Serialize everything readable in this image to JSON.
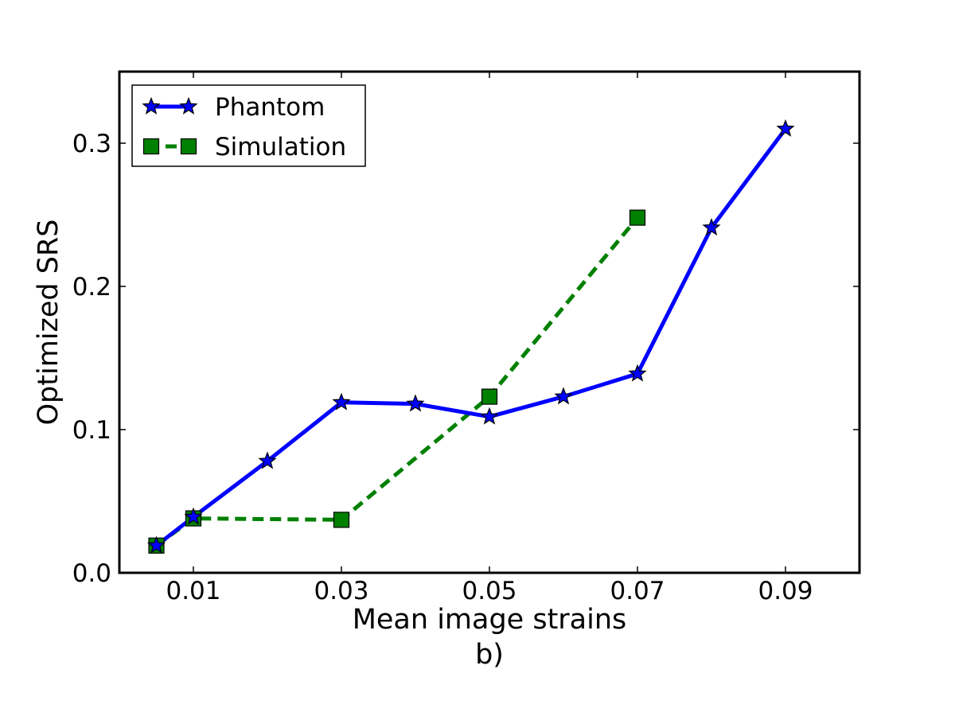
{
  "chart_data": {
    "type": "line",
    "title": "",
    "xlabel": "Mean image strains",
    "ylabel": "Optimized SRS",
    "panel_label": "b)",
    "xlim": [
      0,
      0.1
    ],
    "ylim": [
      0,
      0.35
    ],
    "xticks": [
      0.01,
      0.03,
      0.05,
      0.07,
      0.09
    ],
    "xtick_labels": [
      "0.01",
      "0.03",
      "0.05",
      "0.07",
      "0.09"
    ],
    "yticks": [
      0.0,
      0.1,
      0.2,
      0.3
    ],
    "ytick_labels": [
      "0.0",
      "0.1",
      "0.2",
      "0.3"
    ],
    "grid": false,
    "legend": "top-left",
    "series": [
      {
        "name": "Phantom",
        "color": "#0000ff",
        "linestyle": "solid",
        "marker": "star-icon",
        "x": [
          0.005,
          0.01,
          0.02,
          0.03,
          0.04,
          0.05,
          0.06,
          0.07,
          0.08,
          0.09
        ],
        "y": [
          0.019,
          0.039,
          0.078,
          0.119,
          0.118,
          0.109,
          0.123,
          0.139,
          0.241,
          0.31
        ]
      },
      {
        "name": "Simulation",
        "color": "#008000",
        "linestyle": "dashed",
        "marker": "square-icon",
        "x": [
          0.005,
          0.01,
          0.03,
          0.05,
          0.07
        ],
        "y": [
          0.019,
          0.038,
          0.037,
          0.123,
          0.248
        ]
      }
    ]
  }
}
